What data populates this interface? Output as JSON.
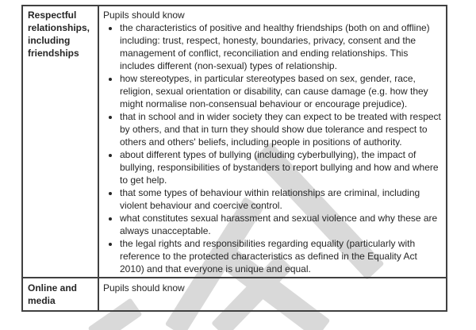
{
  "document": {
    "kind": "scanned-guidance-table-page"
  },
  "colors": {
    "page_background": "#ffffff",
    "text": "#262626",
    "table_border": "#404040",
    "watermark_gray": "#d9d9d9"
  },
  "watermark": {
    "description": "diagonal light-gray draft watermark stroke fragments",
    "color": "#d9d9d9"
  },
  "table": {
    "rows": [
      {
        "topic": "Respectful relationships, including friendships",
        "intro": "Pupils should know",
        "bullets": [
          "the characteristics of positive and healthy friendships (both on and offline) including: trust, respect, honesty, boundaries, privacy, consent and the management of conflict, reconciliation and ending relationships. This includes different (non-sexual) types of relationship.",
          "how stereotypes, in particular stereotypes based on sex, gender, race, religion, sexual orientation or disability, can cause damage (e.g. how they might normalise non-consensual behaviour or encourage prejudice).",
          "that in school and in wider society they can expect to be treated with respect by others, and that in turn they should show due tolerance and respect to others and others' beliefs, including people in positions of authority.",
          "about different types of bullying (including cyberbullying), the impact of bullying, responsibilities of bystanders to report bullying and how and where to get help.",
          "that some types of behaviour within relationships are criminal, including violent behaviour and coercive control.",
          "what constitutes sexual harassment and sexual violence and why these are always unacceptable.",
          "the legal rights and responsibilities regarding equality (particularly with reference to the protected characteristics as defined in the Equality Act 2010) and that everyone is unique and equal."
        ]
      },
      {
        "topic": "Online and media",
        "intro": "Pupils should know",
        "bullets": []
      }
    ]
  }
}
